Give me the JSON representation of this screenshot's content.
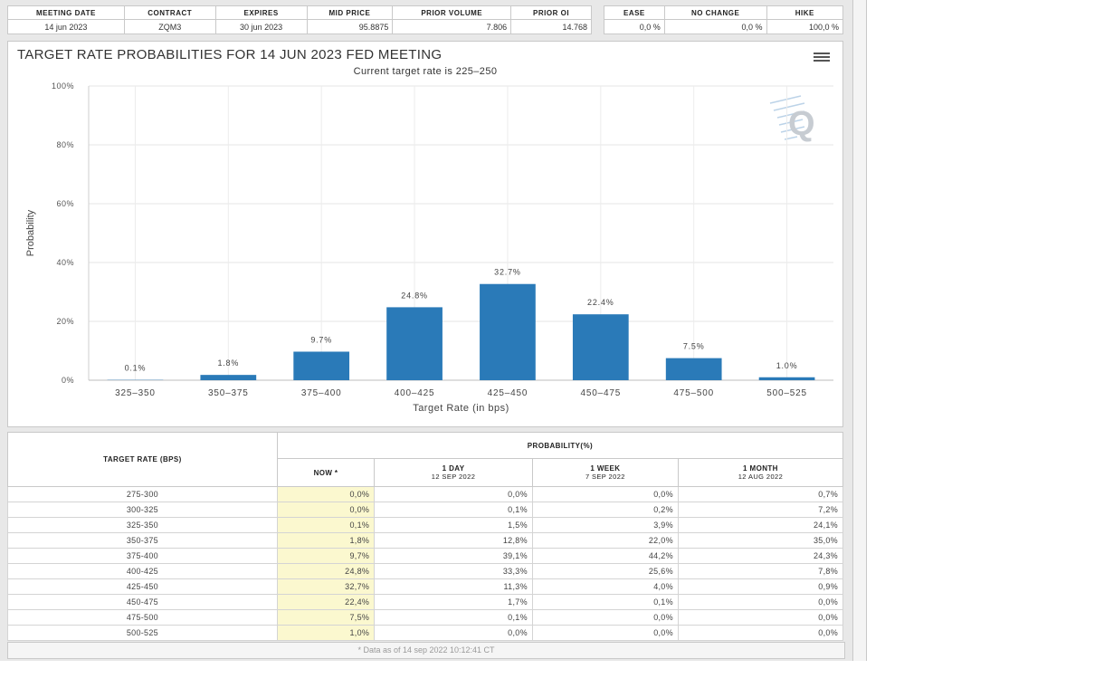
{
  "meeting_table": {
    "headers": [
      "MEETING DATE",
      "CONTRACT",
      "EXPIRES",
      "MID PRICE",
      "PRIOR VOLUME",
      "PRIOR OI"
    ],
    "row": [
      "14 jun 2023",
      "ZQM3",
      "30 jun 2023",
      "95.8875",
      "7.806",
      "14.768"
    ]
  },
  "outcome_table": {
    "headers": [
      "EASE",
      "NO CHANGE",
      "HIKE"
    ],
    "row": [
      "0,0 %",
      "0,0 %",
      "100,0 %"
    ]
  },
  "chart": {
    "title": "TARGET RATE PROBABILITIES FOR 14 JUN 2023 FED MEETING",
    "subtitle": "Current target rate is 225–250",
    "logo_text": "Q",
    "menu_icon": "hamburger-menu-icon"
  },
  "chart_data": {
    "type": "bar",
    "title": "TARGET RATE PROBABILITIES FOR 14 JUN 2023 FED MEETING",
    "subtitle": "Current target rate is 225–250",
    "xlabel": "Target Rate (in bps)",
    "ylabel": "Probability",
    "ylim": [
      0,
      100
    ],
    "yticks": [
      "0%",
      "20%",
      "40%",
      "60%",
      "80%",
      "100%"
    ],
    "categories": [
      "325–350",
      "350–375",
      "375–400",
      "400–425",
      "425–450",
      "450–475",
      "475–500",
      "500–525"
    ],
    "values": [
      0.1,
      1.8,
      9.7,
      24.8,
      32.7,
      22.4,
      7.5,
      1.0
    ],
    "data_labels": [
      "0.1%",
      "1.8%",
      "9.7%",
      "24.8%",
      "32.7%",
      "22.4%",
      "7.5%",
      "1.0%"
    ],
    "grid": true,
    "color": "#2a7ab8"
  },
  "probability_table": {
    "target_header": "TARGET RATE (BPS)",
    "prob_header": "PROBABILITY(%)",
    "columns": [
      {
        "label": "NOW *",
        "sub": ""
      },
      {
        "label": "1 DAY",
        "sub": "12 SEP 2022"
      },
      {
        "label": "1 WEEK",
        "sub": "7 SEP 2022"
      },
      {
        "label": "1 MONTH",
        "sub": "12 AUG 2022"
      }
    ],
    "rows": [
      [
        "275-300",
        "0,0%",
        "0,0%",
        "0,0%",
        "0,7%"
      ],
      [
        "300-325",
        "0,0%",
        "0,1%",
        "0,2%",
        "7,2%"
      ],
      [
        "325-350",
        "0,1%",
        "1,5%",
        "3,9%",
        "24,1%"
      ],
      [
        "350-375",
        "1,8%",
        "12,8%",
        "22,0%",
        "35,0%"
      ],
      [
        "375-400",
        "9,7%",
        "39,1%",
        "44,2%",
        "24,3%"
      ],
      [
        "400-425",
        "24,8%",
        "33,3%",
        "25,6%",
        "7,8%"
      ],
      [
        "425-450",
        "32,7%",
        "11,3%",
        "4,0%",
        "0,9%"
      ],
      [
        "450-475",
        "22,4%",
        "1,7%",
        "0,1%",
        "0,0%"
      ],
      [
        "475-500",
        "7,5%",
        "0,1%",
        "0,0%",
        "0,0%"
      ],
      [
        "500-525",
        "1,0%",
        "0,0%",
        "0,0%",
        "0,0%"
      ]
    ],
    "footnote": "* Data as of 14 sep 2022 10:12:41 CT"
  }
}
